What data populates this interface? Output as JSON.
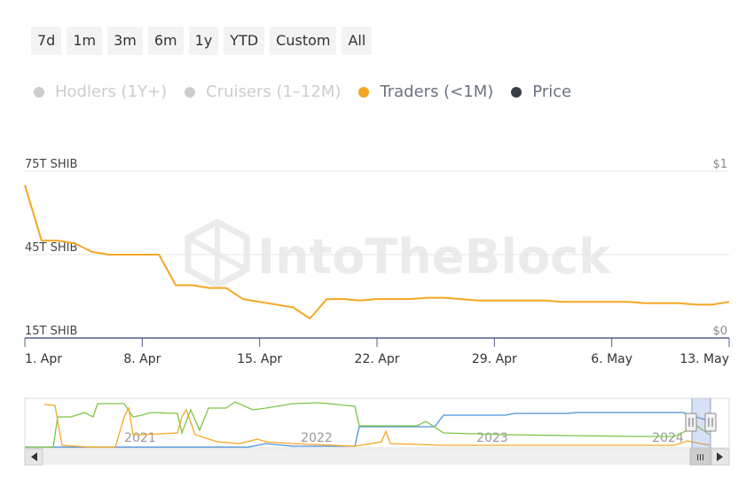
{
  "range_buttons": [
    "7d",
    "1m",
    "3m",
    "6m",
    "1y",
    "YTD",
    "Custom",
    "All"
  ],
  "legend": [
    {
      "label": "Hodlers (1Y+)",
      "color": "#cccccc",
      "state": "hidden"
    },
    {
      "label": "Cruisers (1–12M)",
      "color": "#cccccc",
      "state": "hidden"
    },
    {
      "label": "Traders (<1M)",
      "color": "#f5a623",
      "state": "active"
    },
    {
      "label": "Price",
      "color": "#3a3f47",
      "state": "active"
    }
  ],
  "watermark": "IntoTheBlock",
  "colors": {
    "traders": "#f5a623",
    "hodlers": "#4a90d9",
    "cruisers": "#7cc547",
    "axis": "#55608a"
  },
  "chart_data": {
    "type": "line",
    "y_left_ticks": [
      "75T SHIB",
      "45T SHIB",
      "15T SHIB"
    ],
    "y_right_ticks": [
      "$1",
      "$0"
    ],
    "ylim": [
      15,
      75
    ],
    "x_ticks": [
      {
        "label": "1. Apr",
        "day": 1
      },
      {
        "label": "8. Apr",
        "day": 8
      },
      {
        "label": "15. Apr",
        "day": 15
      },
      {
        "label": "22. Apr",
        "day": 22
      },
      {
        "label": "29. Apr",
        "day": 29
      },
      {
        "label": "6. May",
        "day": 36
      },
      {
        "label": "13. May",
        "day": 43
      }
    ],
    "series": [
      {
        "name": "Traders (<1M)",
        "x": [
          1,
          2,
          3,
          4,
          5,
          6,
          7,
          8,
          9,
          10,
          11,
          12,
          13,
          14,
          15,
          16,
          17,
          18,
          19,
          20,
          21,
          22,
          23,
          24,
          25,
          26,
          27,
          28,
          29,
          30,
          31,
          32,
          33,
          34,
          35,
          36,
          37,
          38,
          39,
          40,
          41,
          42,
          43
        ],
        "y": [
          70,
          50,
          50,
          49,
          46,
          45,
          45,
          45,
          45,
          34,
          34,
          33,
          33,
          29,
          28,
          27,
          26,
          22,
          29,
          29,
          28.5,
          29,
          29,
          29,
          29.5,
          29.5,
          29,
          28.5,
          28.5,
          28.5,
          28.5,
          28.5,
          28,
          28,
          28,
          28,
          28,
          27.5,
          27.5,
          27.5,
          27,
          27,
          28
        ]
      }
    ]
  },
  "navigator": {
    "year_labels": [
      "2021",
      "2022",
      "2023",
      "2024"
    ],
    "scroll_grip": "III"
  }
}
